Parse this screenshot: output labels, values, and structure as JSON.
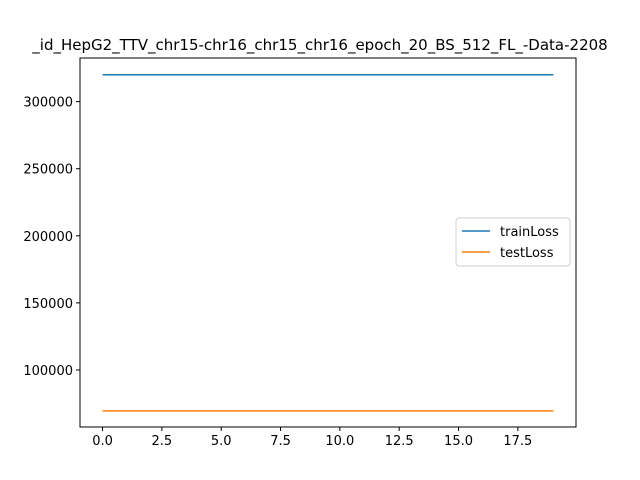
{
  "chart_data": {
    "type": "line",
    "title": "_id_HepG2_TTV_chr15-chr16_chr15_chr16_epoch_20_BS_512_FL_-Data-2208",
    "xlabel": "",
    "ylabel": "",
    "xlim": [
      -0.95,
      19.95
    ],
    "ylim": [
      57500,
      332500
    ],
    "x_ticks": [
      0.0,
      2.5,
      5.0,
      7.5,
      10.0,
      12.5,
      15.0,
      17.5
    ],
    "x_tick_labels": [
      "0.0",
      "2.5",
      "5.0",
      "7.5",
      "10.0",
      "12.5",
      "15.0",
      "17.5"
    ],
    "y_ticks": [
      100000,
      150000,
      200000,
      250000,
      300000
    ],
    "y_tick_labels": [
      "100000",
      "150000",
      "200000",
      "250000",
      "300000"
    ],
    "grid": false,
    "legend": {
      "position": "center-right"
    },
    "x": [
      0,
      1,
      2,
      3,
      4,
      5,
      6,
      7,
      8,
      9,
      10,
      11,
      12,
      13,
      14,
      15,
      16,
      17,
      18,
      19
    ],
    "series": [
      {
        "name": "trainLoss",
        "color": "#1f77b4",
        "values": [
          320000,
          320000,
          320000,
          320000,
          320000,
          320000,
          320000,
          320000,
          320000,
          320000,
          320000,
          320000,
          320000,
          320000,
          320000,
          320000,
          320000,
          320000,
          320000,
          320000
        ]
      },
      {
        "name": "testLoss",
        "color": "#ff7f0e",
        "values": [
          69500,
          69500,
          69500,
          69500,
          69500,
          69500,
          69500,
          69500,
          69500,
          69500,
          69500,
          69500,
          69500,
          69500,
          69500,
          69500,
          69500,
          69500,
          69500,
          69500
        ]
      }
    ]
  }
}
